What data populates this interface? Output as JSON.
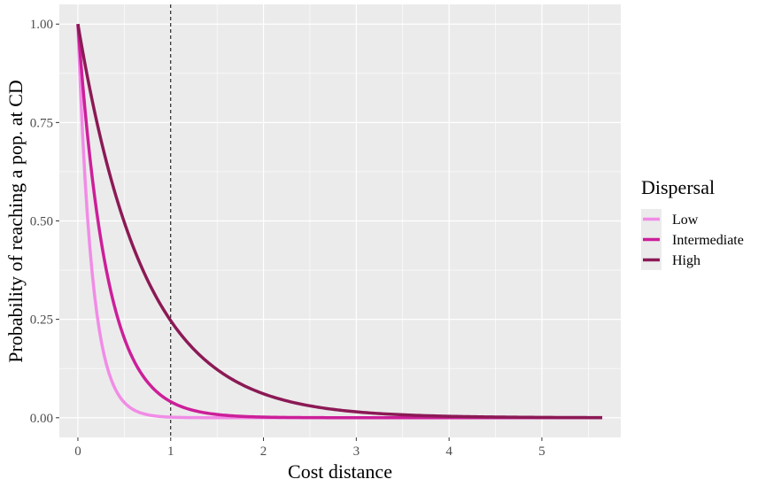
{
  "chart_data": {
    "type": "line",
    "title": "",
    "xlabel": "Cost distance",
    "ylabel": "Probability of reaching a pop. at CD",
    "xlim": [
      -0.2,
      5.85
    ],
    "ylim": [
      -0.05,
      1.05
    ],
    "x_ticks": [
      0,
      1,
      2,
      3,
      4,
      5
    ],
    "x_tick_labels": [
      "0",
      "1",
      "2",
      "3",
      "4",
      "5"
    ],
    "y_ticks": [
      0,
      0.25,
      0.5,
      0.75,
      1
    ],
    "y_tick_labels": [
      "0.00",
      "0.25",
      "0.50",
      "0.75",
      "1.00"
    ],
    "vline": 1,
    "grid": true,
    "legend": {
      "title": "Dispersal",
      "position": "right"
    },
    "series": [
      {
        "name": "Low",
        "color": "#f18ce6",
        "decay_rate": 6.5,
        "x": [
          0,
          0.05,
          0.1,
          0.15,
          0.2,
          0.3,
          0.4,
          0.5,
          0.6,
          0.8,
          1.0,
          1.3,
          1.6,
          2.0,
          3.0,
          4.0,
          5.0,
          5.65
        ],
        "y": [
          1,
          0.72,
          0.52,
          0.38,
          0.27,
          0.14,
          0.074,
          0.039,
          0.02,
          0.0055,
          0.0015,
          0.0002,
          0,
          0,
          0,
          0,
          0,
          0
        ]
      },
      {
        "name": "Intermediate",
        "color": "#cc1f99",
        "decay_rate": 3.2,
        "x": [
          0,
          0.05,
          0.1,
          0.15,
          0.2,
          0.3,
          0.4,
          0.5,
          0.6,
          0.8,
          1.0,
          1.2,
          1.5,
          2.0,
          2.5,
          3.0,
          4.0,
          5.0,
          5.65
        ],
        "y": [
          1,
          0.85,
          0.73,
          0.62,
          0.53,
          0.38,
          0.28,
          0.2,
          0.147,
          0.077,
          0.041,
          0.021,
          0.0082,
          0.0017,
          0.0003,
          0.0001,
          0,
          0,
          0
        ]
      },
      {
        "name": "High",
        "color": "#8b1a55",
        "decay_rate": 1.4,
        "x": [
          0,
          0.1,
          0.2,
          0.3,
          0.4,
          0.5,
          0.6,
          0.7,
          0.8,
          0.9,
          1.0,
          1.2,
          1.4,
          1.6,
          1.8,
          2.0,
          2.5,
          3.0,
          3.5,
          4.0,
          4.5,
          5.0,
          5.65
        ],
        "y": [
          1,
          0.87,
          0.76,
          0.66,
          0.57,
          0.5,
          0.43,
          0.375,
          0.326,
          0.284,
          0.247,
          0.186,
          0.141,
          0.106,
          0.08,
          0.061,
          0.03,
          0.015,
          0.0074,
          0.0037,
          0.0018,
          0.0009,
          0.0004
        ]
      }
    ]
  }
}
